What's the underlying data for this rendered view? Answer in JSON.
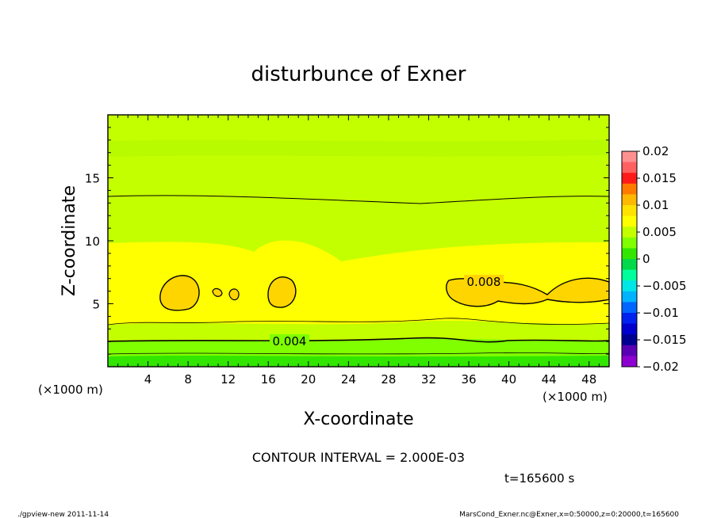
{
  "chart_data": {
    "type": "contour",
    "title": "disturbunce of Exner",
    "xlabel": "X-coordinate",
    "ylabel": "Z-coordinate",
    "x_unit_left": "(×1000 m)",
    "x_unit_right": "(×1000 m)",
    "xlim": [
      0,
      50
    ],
    "ylim": [
      0,
      20
    ],
    "x_ticks": [
      4,
      8,
      12,
      16,
      20,
      24,
      28,
      32,
      36,
      40,
      44,
      48
    ],
    "y_ticks": [
      5,
      10,
      15
    ],
    "contour_labels": [
      "0.004",
      "0.008"
    ],
    "contour_interval_text": "CONTOUR INTERVAL = 2.000E-03",
    "time_text": "t=165600 s",
    "colorbar": {
      "labels": [
        "0.02",
        "0.015",
        "0.01",
        "0.005",
        "0",
        "−0.005",
        "−0.01",
        "−0.015",
        "−0.02"
      ],
      "colors": [
        "#ff9090",
        "#ff6060",
        "#ff1a1a",
        "#ff7b00",
        "#ffb800",
        "#ffe200",
        "#ffff00",
        "#c4ff00",
        "#80ff00",
        "#33e600",
        "#00d94a",
        "#00ff9c",
        "#00e6e6",
        "#00b3ff",
        "#0066ff",
        "#0022ee",
        "#0000cc",
        "#000090",
        "#5a00b4",
        "#8e00d0"
      ]
    }
  },
  "footer": {
    "left": "./gpview-new   2011-11-14",
    "right": "MarsCond_Exner.nc@Exner,x=0:50000,z=0:20000,t=165600"
  },
  "colors": {
    "yellow": "#ffff00",
    "yellow_green": "#c4ff00",
    "green": "#80ff00",
    "dark_green": "#33e600",
    "orange_yellow": "#ffd500"
  }
}
